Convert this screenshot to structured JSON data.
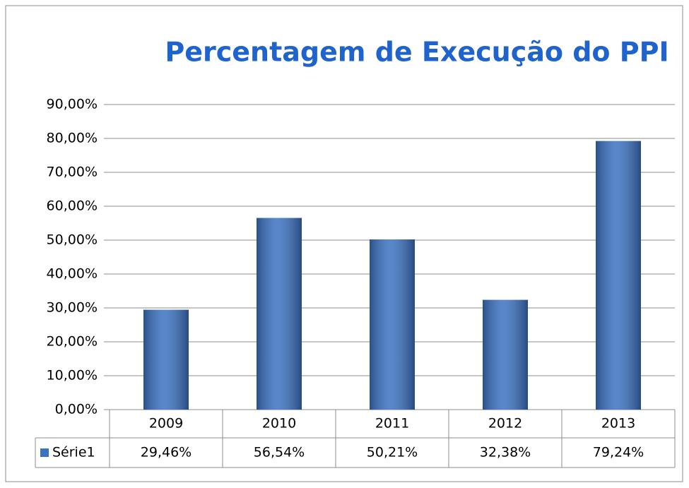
{
  "chart_data": {
    "type": "bar",
    "title": "Percentagem de Execução do PPI",
    "categories": [
      "2009",
      "2010",
      "2011",
      "2012",
      "2013"
    ],
    "series": [
      {
        "name": "Série1",
        "color": "#3b72c2",
        "values": [
          29.46,
          56.54,
          50.21,
          32.38,
          79.24
        ],
        "value_labels": [
          "29,46%",
          "56,54%",
          "50,21%",
          "32,38%",
          "79,24%"
        ]
      }
    ],
    "ylim": [
      0,
      90
    ],
    "yticks": [
      {
        "value": 0,
        "label": "0,00%"
      },
      {
        "value": 10,
        "label": "10,00%"
      },
      {
        "value": 20,
        "label": "20,00%"
      },
      {
        "value": 30,
        "label": "30,00%"
      },
      {
        "value": 40,
        "label": "40,00%"
      },
      {
        "value": 50,
        "label": "50,00%"
      },
      {
        "value": 60,
        "label": "60,00%"
      },
      {
        "value": 70,
        "label": "70,00%"
      },
      {
        "value": 80,
        "label": "80,00%"
      },
      {
        "value": 90,
        "label": "90,00%"
      }
    ],
    "grid": true
  }
}
